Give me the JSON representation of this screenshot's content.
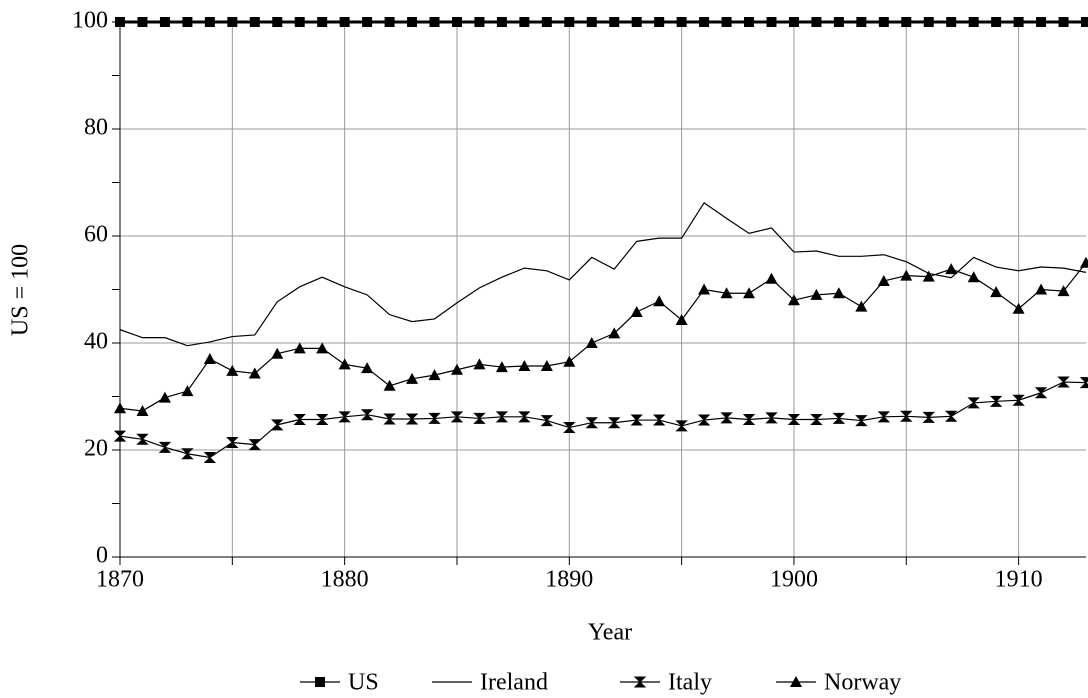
{
  "chart_data": {
    "type": "line",
    "x_label": "Year",
    "y_label": "US = 100",
    "x": [
      1870,
      1871,
      1872,
      1873,
      1874,
      1875,
      1876,
      1877,
      1878,
      1879,
      1880,
      1881,
      1882,
      1883,
      1884,
      1885,
      1886,
      1887,
      1888,
      1889,
      1890,
      1891,
      1892,
      1893,
      1894,
      1895,
      1896,
      1897,
      1898,
      1899,
      1900,
      1901,
      1902,
      1903,
      1904,
      1905,
      1906,
      1907,
      1908,
      1909,
      1910,
      1911,
      1912,
      1913
    ],
    "xlim": [
      1870,
      1913
    ],
    "xticks": [
      1870,
      1880,
      1890,
      1900,
      1910
    ],
    "xgrid": [
      1875,
      1885,
      1895,
      1905
    ],
    "ylim": [
      0,
      100
    ],
    "yticks": [
      0,
      20,
      40,
      60,
      80,
      100
    ],
    "yminor": [
      10,
      30,
      50,
      70,
      90
    ],
    "grid": true,
    "legend": "bottom",
    "series": [
      {
        "name": "US",
        "color": "#000000",
        "marker": "square",
        "values": [
          100,
          100,
          100,
          100,
          100,
          100,
          100,
          100,
          100,
          100,
          100,
          100,
          100,
          100,
          100,
          100,
          100,
          100,
          100,
          100,
          100,
          100,
          100,
          100,
          100,
          100,
          100,
          100,
          100,
          100,
          100,
          100,
          100,
          100,
          100,
          100,
          100,
          100,
          100,
          100,
          100,
          100,
          100,
          100
        ]
      },
      {
        "name": "Ireland",
        "color": "#000000",
        "marker": "none",
        "values": [
          42.5,
          41,
          41,
          39.5,
          40.2,
          41.2,
          41.5,
          47.7,
          50.5,
          52.3,
          50.5,
          49,
          45.3,
          44,
          44.5,
          47.5,
          50.3,
          52.3,
          54,
          53.5,
          51.8,
          56,
          53.8,
          59,
          59.6,
          59.6,
          66.2,
          63.3,
          60.5,
          61.5,
          57,
          57.2,
          56.2,
          56.2,
          56.5,
          55.2,
          53,
          52.2,
          56,
          54.2,
          53.5,
          54.2,
          54,
          53.2
        ]
      },
      {
        "name": "Italy",
        "color": "#000000",
        "marker": "hourglass",
        "values": [
          22.6,
          22,
          20.5,
          19.3,
          18.6,
          21.4,
          21,
          24.7,
          25.7,
          25.7,
          26.2,
          26.6,
          25.8,
          25.8,
          25.9,
          26.2,
          25.9,
          26.2,
          26.2,
          25.5,
          24.2,
          25.1,
          25.1,
          25.6,
          25.6,
          24.5,
          25.6,
          26,
          25.7,
          26,
          25.7,
          25.7,
          25.9,
          25.5,
          26.2,
          26.3,
          26.1,
          26.3,
          28.8,
          29.1,
          29.3,
          30.7,
          32.7,
          32.6
        ]
      },
      {
        "name": "Norway",
        "color": "#000000",
        "marker": "triangle",
        "values": [
          27.8,
          27.3,
          29.8,
          31,
          37,
          34.8,
          34.3,
          38,
          39,
          39,
          36,
          35.3,
          32,
          33.3,
          34,
          35,
          36,
          35.5,
          35.7,
          35.7,
          36.5,
          40,
          41.8,
          45.8,
          47.8,
          44.3,
          50,
          49.3,
          49.3,
          52,
          48,
          49,
          49.3,
          46.8,
          51.6,
          52.6,
          52.4,
          53.8,
          52.3,
          49.5,
          46.4,
          50,
          49.7,
          55
        ]
      }
    ]
  }
}
